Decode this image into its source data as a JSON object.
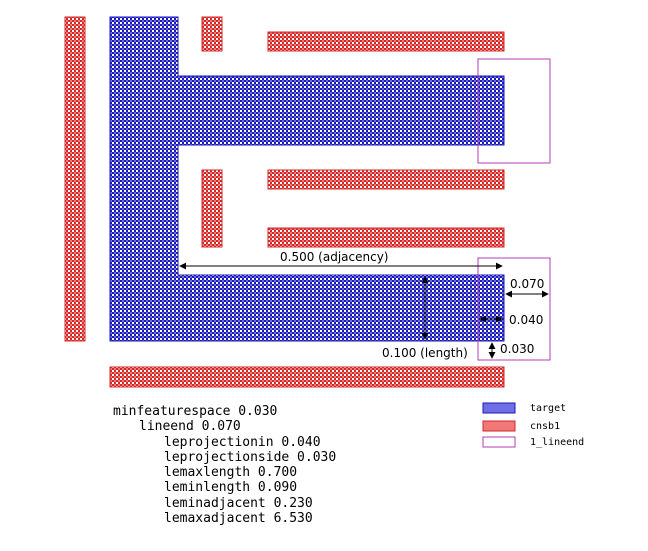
{
  "dimensions": {
    "adjacency": "0.500 (adjacency)",
    "lineend_width": "0.070",
    "projection_in": "0.040",
    "projection_side": "0.030",
    "length": "0.100 (length)"
  },
  "rules": {
    "line1": "minfeaturespace 0.030",
    "line2": "lineend 0.070",
    "line3": "leprojectionin 0.040",
    "line4": "leprojectionside 0.030",
    "line5": "lemaxlength 0.700",
    "line6": "leminlength 0.090",
    "line7": "leminadjacent 0.230",
    "line8": "lemaxadjacent 6.530"
  },
  "legend": {
    "target": "target",
    "cnsb1": "cnsb1",
    "lineend": "1_lineend"
  },
  "colors": {
    "target": "#3232c8",
    "cnsb1": "#e03c3c",
    "lineend": "#b43cb4"
  }
}
